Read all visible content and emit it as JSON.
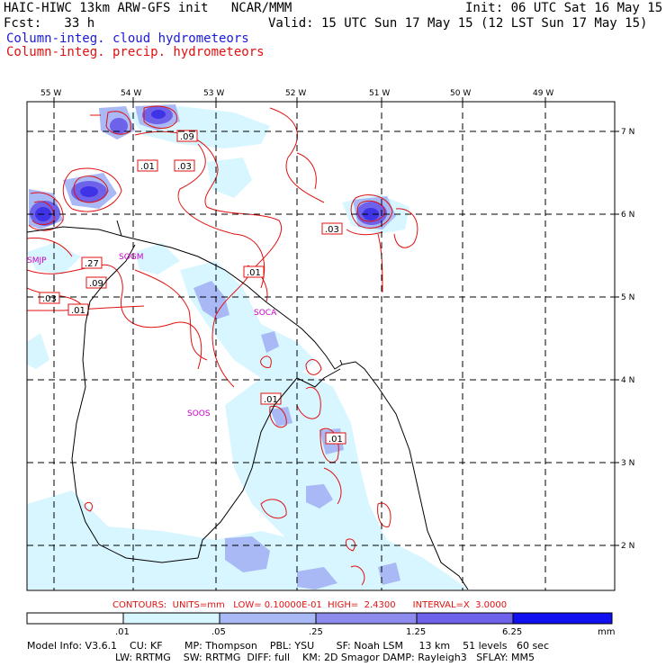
{
  "header": {
    "model_line": "HAIC-HIWC 13km ARW-GFS init   NCAR/MMM",
    "init_line": "Init: 06 UTC Sat 16 May 15",
    "fcst_line": "Fcst:   33 h",
    "valid_line": "Valid: 15 UTC Sun 17 May 15 (12 LST Sun 17 May 15)",
    "field1": "Column-integ. cloud hydrometeors",
    "field2": "Column-integ. precip. hydrometeors"
  },
  "map": {
    "lon_labels": [
      "55 W",
      "54 W",
      "53 W",
      "52 W",
      "51 W",
      "50 W",
      "49 W"
    ],
    "lat_labels": [
      "7 N",
      "6 N",
      "5 N",
      "4 N",
      "3 N",
      "2 N"
    ],
    "stations": [
      "SMJP",
      "SOGM",
      "SOCA",
      "SOOS"
    ],
    "contour_labels": [
      ".09",
      ".01",
      ".03",
      ".27",
      ".09",
      ".03",
      ".01",
      ".01",
      ".03",
      ".01",
      ".01"
    ],
    "colors": {
      "coast": "#000000",
      "contour": "#e01010",
      "grid": "#000000",
      "station": "#c800c8",
      "shade_1": "#d8f6ff",
      "shade_2": "#a9b9f5",
      "shade_3": "#8d8cee",
      "shade_4": "#6e61ea",
      "shade_5": "#3f33e6"
    }
  },
  "contours_info": {
    "text": "CONTOURS:  UNITS=mm   LOW= 0.10000E-01  HIGH=  2.4300      INTERVAL=X  3.0000"
  },
  "colorbar": {
    "ticks": [
      ".01",
      ".05",
      ".25",
      "1.25",
      "6.25"
    ],
    "unit": "mm",
    "colors": [
      "#ffffff",
      "#d8f6ff",
      "#a9b9f5",
      "#8d8cee",
      "#6e61ea",
      "#3f33e6",
      "#1010f0"
    ]
  },
  "model_info": {
    "line1": "Model Info: V3.6.1    CU: KF       MP: Thompson    PBL: YSU       SF: Noah LSM     13 km    51 levels   60 sec",
    "line2": "LW: RRTMG    SW: RRTMG  DIFF: full    KM: 2D Smagor DAMP: Rayleigh3   SFLAY: MM5"
  }
}
